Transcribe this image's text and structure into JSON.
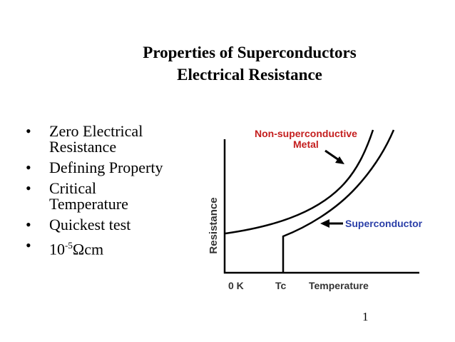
{
  "slide": {
    "title_line1": "Properties of Superconductors",
    "title_line2": "Electrical Resistance",
    "page_number": "1"
  },
  "bullets": [
    {
      "lines": [
        "Zero Electrical",
        "Resistance"
      ]
    },
    {
      "lines": [
        "Defining Property"
      ]
    },
    {
      "lines": [
        "Critical",
        "Temperature"
      ]
    },
    {
      "lines": [
        "Quickest test"
      ]
    },
    {
      "base": "10",
      "sup": "-5",
      "rest": "Ωcm"
    }
  ],
  "diagram": {
    "y_axis_label": "Resistance",
    "x_tick_zero": "0 K",
    "x_tick_tc": "Tc",
    "x_axis_label": "Temperature",
    "label_metal_line1": "Non-superconductive",
    "label_metal_line2": "Metal",
    "label_super": "Superconductor",
    "colors": {
      "metal_label": "#c41e1e",
      "super_label": "#2b3fa8",
      "lines": "#000000"
    }
  }
}
